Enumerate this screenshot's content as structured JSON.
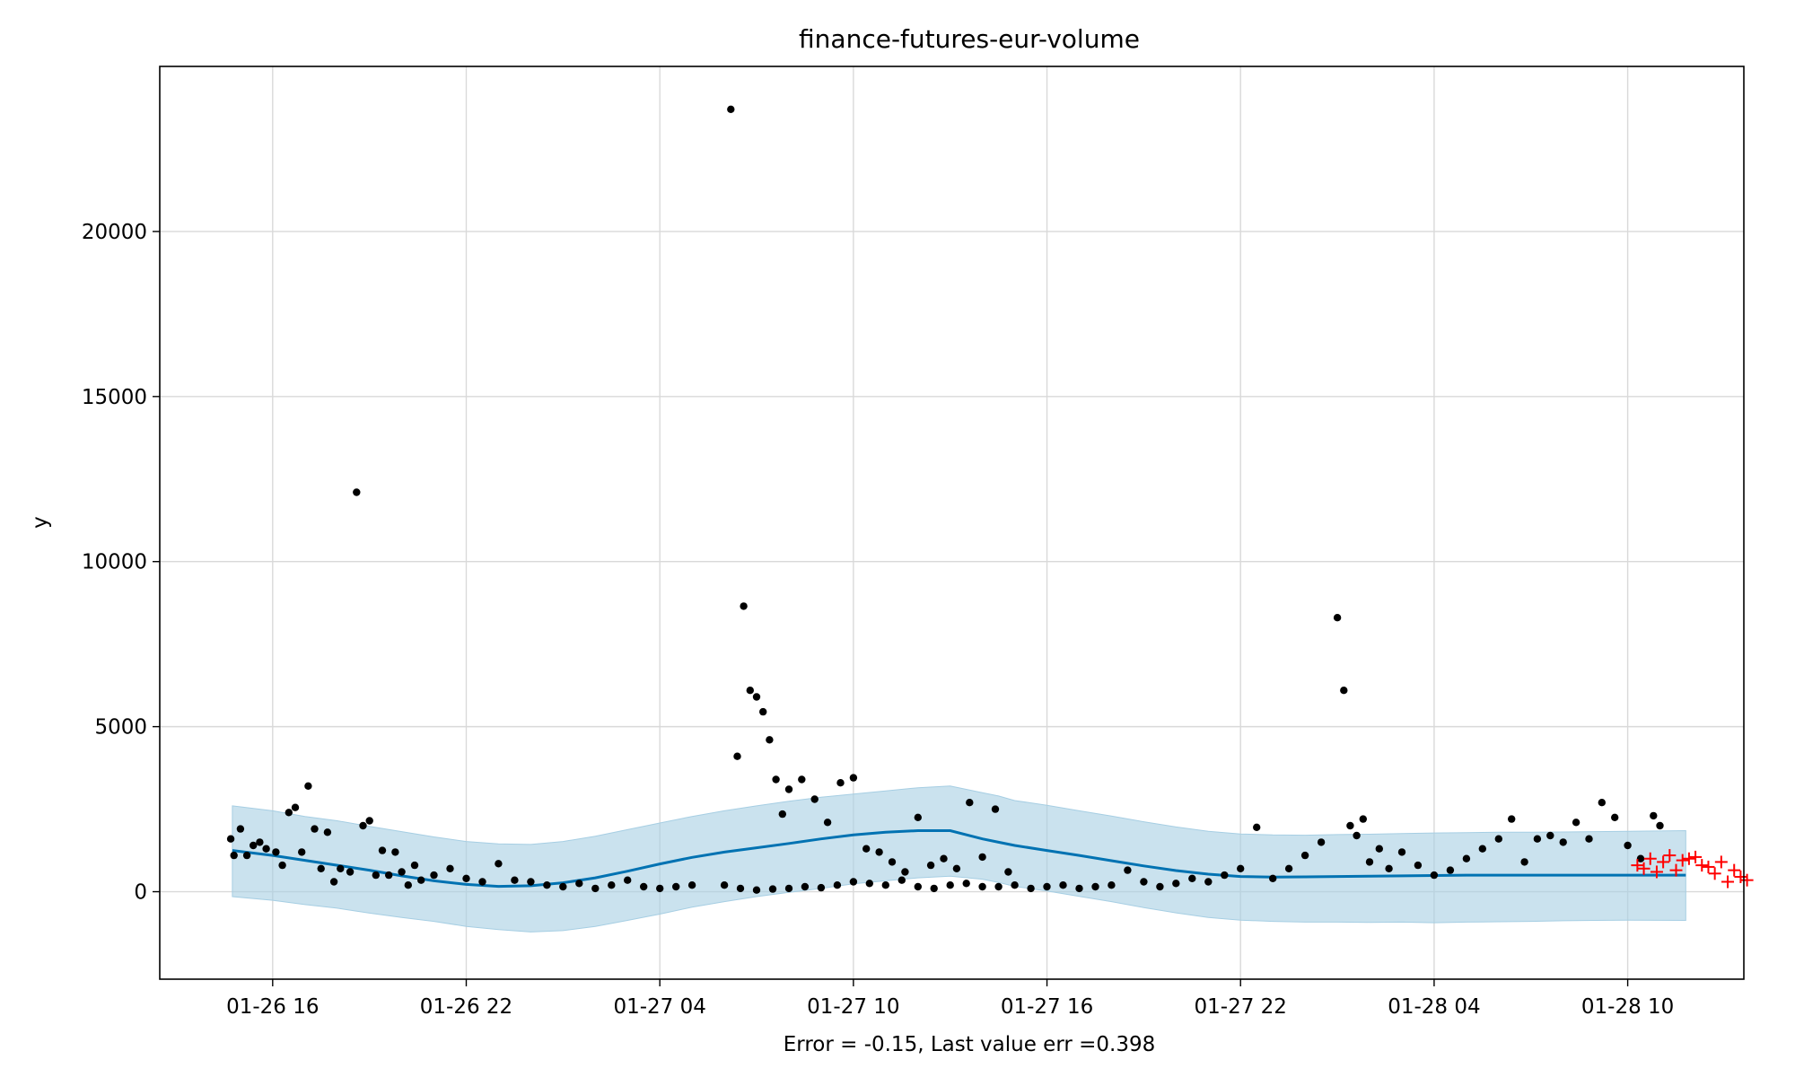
{
  "chart_data": {
    "type": "scatter",
    "title": "finance-futures-eur-volume",
    "xlabel": "Error = -0.15, Last value err =0.398",
    "ylabel": "y",
    "x_ticks": [
      "01-26 16",
      "01-26 22",
      "01-27 04",
      "01-27 10",
      "01-27 16",
      "01-27 22",
      "01-28 04",
      "01-28 10"
    ],
    "x_tick_hours": [
      0,
      6,
      12,
      18,
      24,
      30,
      36,
      42
    ],
    "x_range_hours": [
      -3.5,
      45.6
    ],
    "y_ticks": [
      0,
      5000,
      10000,
      15000,
      20000
    ],
    "ylim": [
      -2650,
      25000
    ],
    "grid": true,
    "colors": {
      "observed": "#000000",
      "forecast_line": "#0072b2",
      "uncertainty_band": "#a6cee3",
      "future_points": "#ff0000"
    },
    "forecast": {
      "hours": [
        -1.25,
        0,
        1,
        2,
        3,
        4,
        5,
        6,
        7,
        8,
        9,
        10,
        11,
        12,
        13,
        14,
        15,
        16,
        17,
        18,
        19,
        20,
        21,
        22,
        22.5,
        23,
        24,
        25,
        26,
        27,
        28,
        29,
        30,
        31,
        32,
        33,
        34,
        35,
        36,
        37,
        38,
        39,
        40,
        41,
        42,
        43.8
      ],
      "yhat": [
        1250,
        1100,
        950,
        800,
        650,
        480,
        330,
        220,
        160,
        180,
        270,
        420,
        620,
        840,
        1040,
        1200,
        1330,
        1460,
        1600,
        1720,
        1800,
        1850,
        1850,
        1600,
        1500,
        1400,
        1250,
        1100,
        940,
        780,
        640,
        530,
        460,
        440,
        450,
        460,
        470,
        480,
        490,
        500,
        500,
        500,
        500,
        500,
        500,
        500
      ],
      "yhat_lower": [
        -150,
        -260,
        -390,
        -500,
        -650,
        -780,
        -900,
        -1050,
        -1150,
        -1220,
        -1180,
        -1050,
        -870,
        -680,
        -470,
        -300,
        -150,
        -20,
        100,
        240,
        330,
        420,
        470,
        380,
        280,
        160,
        20,
        -140,
        -300,
        -480,
        -640,
        -780,
        -860,
        -900,
        -920,
        -920,
        -930,
        -920,
        -940,
        -920,
        -910,
        -900,
        -880,
        -870,
        -860,
        -870
      ],
      "yhat_upper": [
        2600,
        2450,
        2280,
        2150,
        1980,
        1820,
        1660,
        1520,
        1450,
        1430,
        1520,
        1680,
        1880,
        2080,
        2280,
        2450,
        2600,
        2740,
        2860,
        2960,
        3050,
        3150,
        3200,
        3000,
        2900,
        2760,
        2620,
        2450,
        2290,
        2120,
        1960,
        1830,
        1750,
        1720,
        1710,
        1730,
        1740,
        1760,
        1780,
        1790,
        1800,
        1800,
        1810,
        1820,
        1830,
        1850
      ]
    },
    "observed": {
      "name": "",
      "points": [
        [
          -1.3,
          1600
        ],
        [
          -1.2,
          1100
        ],
        [
          -1.0,
          1900
        ],
        [
          -0.8,
          1100
        ],
        [
          -0.6,
          1400
        ],
        [
          -0.4,
          1500
        ],
        [
          -0.2,
          1300
        ],
        [
          0.1,
          1200
        ],
        [
          0.3,
          800
        ],
        [
          0.5,
          2400
        ],
        [
          0.7,
          2550
        ],
        [
          0.9,
          1200
        ],
        [
          1.1,
          3200
        ],
        [
          1.3,
          1900
        ],
        [
          1.5,
          700
        ],
        [
          1.7,
          1800
        ],
        [
          1.9,
          300
        ],
        [
          2.1,
          700
        ],
        [
          2.4,
          600
        ],
        [
          2.6,
          12100
        ],
        [
          2.8,
          2000
        ],
        [
          3.0,
          2150
        ],
        [
          3.2,
          500
        ],
        [
          3.4,
          1250
        ],
        [
          3.6,
          500
        ],
        [
          3.8,
          1200
        ],
        [
          4.0,
          600
        ],
        [
          4.2,
          200
        ],
        [
          4.4,
          800
        ],
        [
          4.6,
          350
        ],
        [
          5.0,
          500
        ],
        [
          5.5,
          700
        ],
        [
          6.0,
          400
        ],
        [
          6.5,
          300
        ],
        [
          7.0,
          850
        ],
        [
          7.5,
          350
        ],
        [
          8.0,
          300
        ],
        [
          8.5,
          200
        ],
        [
          9.0,
          150
        ],
        [
          9.5,
          250
        ],
        [
          10.0,
          100
        ],
        [
          10.5,
          200
        ],
        [
          11.0,
          350
        ],
        [
          11.5,
          150
        ],
        [
          12.0,
          100
        ],
        [
          12.5,
          150
        ],
        [
          13.0,
          200
        ],
        [
          14.0,
          200
        ],
        [
          14.5,
          100
        ],
        [
          15.0,
          50
        ],
        [
          15.5,
          80
        ],
        [
          16.0,
          100
        ],
        [
          16.5,
          150
        ],
        [
          17.0,
          120
        ],
        [
          17.5,
          200
        ],
        [
          18.0,
          300
        ],
        [
          18.5,
          250
        ],
        [
          19.0,
          200
        ],
        [
          19.5,
          350
        ],
        [
          20.0,
          150
        ],
        [
          20.5,
          100
        ],
        [
          21.0,
          200
        ],
        [
          21.5,
          250
        ],
        [
          22.0,
          150
        ],
        [
          22.5,
          150
        ],
        [
          23.0,
          200
        ],
        [
          23.5,
          100
        ],
        [
          24.0,
          150
        ],
        [
          24.5,
          200
        ],
        [
          25.0,
          100
        ],
        [
          25.5,
          150
        ],
        [
          26.0,
          200
        ],
        [
          26.5,
          650
        ],
        [
          27.0,
          300
        ],
        [
          27.5,
          150
        ],
        [
          28.0,
          250
        ],
        [
          28.5,
          400
        ],
        [
          29.0,
          300
        ],
        [
          29.5,
          500
        ],
        [
          30.0,
          700
        ],
        [
          30.5,
          1950
        ],
        [
          31.0,
          400
        ],
        [
          31.5,
          700
        ],
        [
          32.0,
          1100
        ],
        [
          32.5,
          1500
        ],
        [
          33.0,
          8300
        ],
        [
          33.2,
          6100
        ],
        [
          33.4,
          2000
        ],
        [
          33.6,
          1700
        ],
        [
          33.8,
          2200
        ],
        [
          34.0,
          900
        ],
        [
          34.3,
          1300
        ],
        [
          34.6,
          700
        ],
        [
          35.0,
          1200
        ],
        [
          35.5,
          800
        ],
        [
          36.0,
          500
        ],
        [
          36.5,
          650
        ],
        [
          37.0,
          1000
        ],
        [
          37.5,
          1300
        ],
        [
          38.0,
          1600
        ],
        [
          38.4,
          2200
        ],
        [
          38.8,
          900
        ],
        [
          39.2,
          1600
        ],
        [
          39.6,
          1700
        ],
        [
          40.0,
          1500
        ],
        [
          40.4,
          2100
        ],
        [
          40.8,
          1600
        ],
        [
          41.2,
          2700
        ],
        [
          41.6,
          2250
        ],
        [
          42.0,
          1400
        ],
        [
          42.4,
          1000
        ],
        [
          42.8,
          2300
        ],
        [
          43.0,
          2000
        ],
        [
          14.2,
          23700
        ],
        [
          14.4,
          4100
        ],
        [
          14.6,
          8650
        ],
        [
          14.8,
          6100
        ],
        [
          15.0,
          5900
        ],
        [
          15.2,
          5450
        ],
        [
          15.4,
          4600
        ],
        [
          15.6,
          3400
        ],
        [
          15.8,
          2350
        ],
        [
          16.0,
          3100
        ],
        [
          16.4,
          3400
        ],
        [
          16.8,
          2800
        ],
        [
          17.2,
          2100
        ],
        [
          17.6,
          3300
        ],
        [
          18.0,
          3450
        ],
        [
          18.4,
          1300
        ],
        [
          18.8,
          1200
        ],
        [
          19.2,
          900
        ],
        [
          19.6,
          600
        ],
        [
          20.0,
          2250
        ],
        [
          20.4,
          800
        ],
        [
          20.8,
          1000
        ],
        [
          21.2,
          700
        ],
        [
          21.6,
          2700
        ],
        [
          22.0,
          1050
        ],
        [
          22.4,
          2500
        ],
        [
          22.8,
          600
        ]
      ]
    },
    "future_points": {
      "name": "",
      "hours": [
        42.3,
        42.5,
        42.7,
        42.9,
        43.1,
        43.3,
        43.5,
        43.7,
        43.9,
        44.1,
        44.3,
        44.5,
        44.7,
        44.9,
        45.1,
        45.3,
        45.5,
        45.7
      ],
      "values": [
        800,
        700,
        1000,
        600,
        900,
        1100,
        650,
        950,
        1000,
        1050,
        800,
        750,
        550,
        900,
        300,
        650,
        450,
        350
      ]
    }
  }
}
